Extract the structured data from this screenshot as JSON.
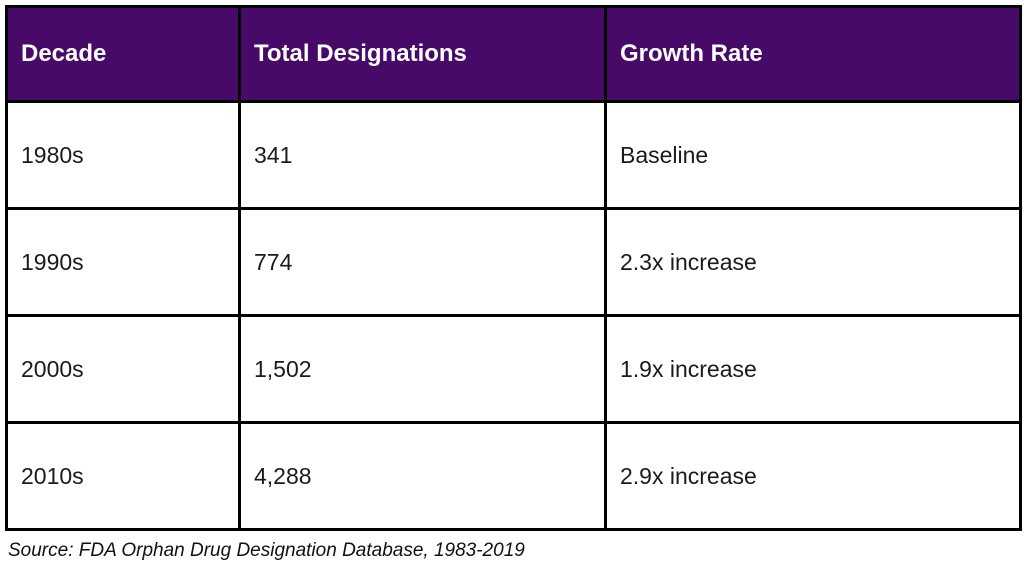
{
  "chart_data": {
    "type": "table",
    "title": "",
    "columns": [
      "Decade",
      "Total Designations",
      "Growth Rate"
    ],
    "rows": [
      [
        "1980s",
        "341",
        "Baseline"
      ],
      [
        "1990s",
        "774",
        "2.3x increase"
      ],
      [
        "2000s",
        "1,502",
        "1.9x increase"
      ],
      [
        "2010s",
        "4,288",
        "2.9x increase"
      ]
    ],
    "source": "Source: FDA Orphan Drug Designation Database, 1983-2019"
  },
  "colors": {
    "header_bg": "#470a68",
    "header_text": "#ffffff",
    "body_text": "#1b1b1b",
    "border": "#000000"
  }
}
